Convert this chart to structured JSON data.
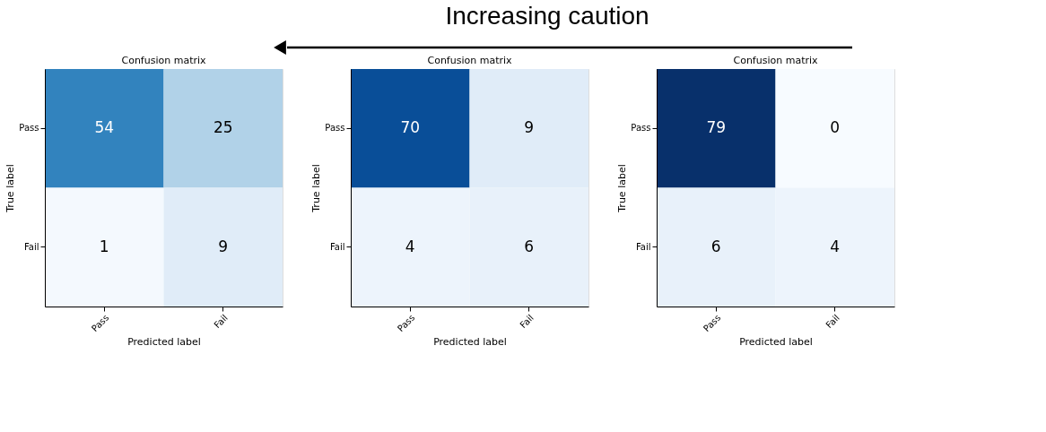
{
  "chart_data": [
    {
      "type": "heatmap",
      "title": "Confusion matrix",
      "xlabel": "Predicted label",
      "ylabel": "True label",
      "categories": [
        "Pass",
        "Fail"
      ],
      "y_categories": [
        "Pass",
        "Fail"
      ],
      "cells": [
        [
          54,
          25
        ],
        [
          1,
          9
        ]
      ],
      "annotations": [
        "Increasing caution"
      ],
      "data_labels": true
    },
    {
      "type": "heatmap",
      "title": "Confusion matrix",
      "xlabel": "Predicted label",
      "ylabel": "True label",
      "categories": [
        "Pass",
        "Fail"
      ],
      "y_categories": [
        "Pass",
        "Fail"
      ],
      "cells": [
        [
          70,
          9
        ],
        [
          4,
          6
        ]
      ],
      "data_labels": true
    },
    {
      "type": "heatmap",
      "title": "Confusion matrix",
      "xlabel": "Predicted label",
      "ylabel": "True label",
      "categories": [
        "Pass",
        "Fail"
      ],
      "y_categories": [
        "Pass",
        "Fail"
      ],
      "cells": [
        [
          79,
          0
        ],
        [
          6,
          4
        ]
      ],
      "data_labels": true
    }
  ]
}
